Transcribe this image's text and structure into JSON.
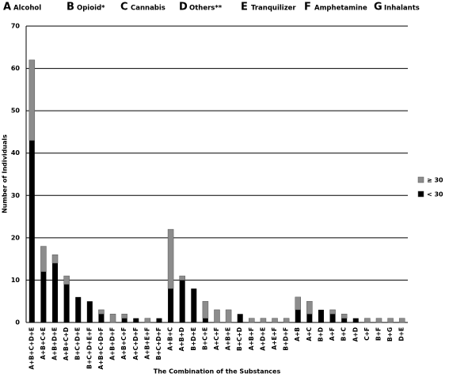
{
  "chart_data": {
    "type": "stacked-bar",
    "key": [
      {
        "letter": "A",
        "name": "Alcohol"
      },
      {
        "letter": "B",
        "name": "Opioid*"
      },
      {
        "letter": "C",
        "name": "Cannabis"
      },
      {
        "letter": "D",
        "name": "Others**"
      },
      {
        "letter": "E",
        "name": "Tranquilizer"
      },
      {
        "letter": "F",
        "name": "Amphetamine"
      },
      {
        "letter": "G",
        "name": "Inhalants"
      }
    ],
    "x_label": "The Combination of the Substances",
    "y_label": "Number of Individuals",
    "categories": [
      "A+B+C+D+E",
      "A+B+C+E",
      "A+B+D+E",
      "A+B+C+D",
      "B+C+D+E",
      "B+C+D+E+F",
      "A+B+C+D+F",
      "A+B+D+F",
      "A+B+C+F",
      "A+C+D+F",
      "A+B+E+F",
      "B+C+D+F",
      "A+B+C",
      "A+B+D",
      "B+D+E",
      "B+C+E",
      "A+C+F",
      "A+B+E",
      "B+C+D",
      "A+B+F",
      "A+D+E",
      "A+E+F",
      "B+D+F",
      "A+B",
      "A+C",
      "B+D",
      "A+F",
      "B+C",
      "A+D",
      "C+F",
      "B+F",
      "B+G",
      "D+E"
    ],
    "series": [
      {
        "name": "< 30",
        "color": "#000000",
        "values": [
          43,
          12,
          14,
          9,
          6,
          5,
          2,
          0,
          1,
          1,
          0,
          1,
          8,
          10,
          8,
          1,
          0,
          0,
          2,
          0,
          0,
          0,
          0,
          3,
          2,
          3,
          2,
          1,
          1,
          0,
          0,
          0,
          0
        ]
      },
      {
        "name": "≥ 30",
        "color": "#8c8c8c",
        "values": [
          19,
          6,
          2,
          2,
          0,
          0,
          1,
          2,
          1,
          0,
          1,
          0,
          14,
          1,
          0,
          4,
          3,
          3,
          0,
          1,
          1,
          1,
          1,
          3,
          3,
          0,
          1,
          1,
          0,
          1,
          1,
          1,
          1
        ]
      }
    ],
    "ylim": [
      0,
      70
    ],
    "yticks": [
      0,
      10,
      20,
      30,
      40,
      50,
      60,
      70
    ],
    "grid": true
  }
}
